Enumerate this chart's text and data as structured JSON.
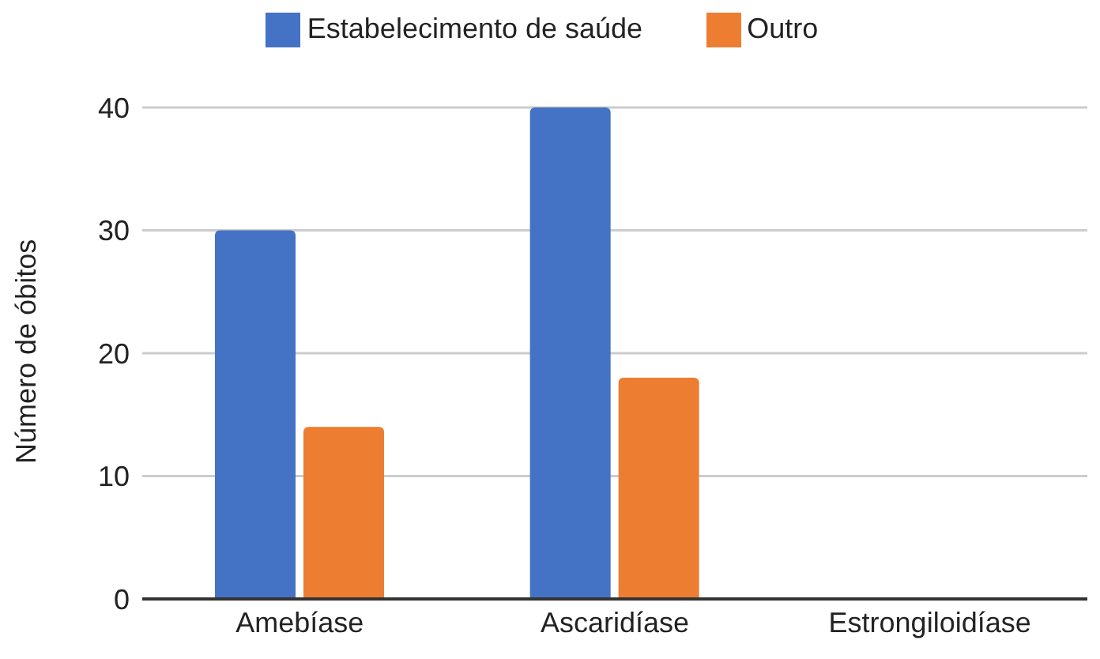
{
  "chart_data": {
    "type": "bar",
    "ylabel": "Número de óbitos",
    "categories": [
      "Amebíase",
      "Ascaridíase",
      "Estrongiloidíase"
    ],
    "series": [
      {
        "name": "Estabelecimento de saúde",
        "color": "#4472c4",
        "values": [
          30,
          40,
          0
        ]
      },
      {
        "name": "Outro",
        "color": "#ed7d31",
        "values": [
          14,
          18,
          0
        ]
      }
    ],
    "ylim": [
      0,
      40
    ],
    "yticks": [
      0,
      10,
      20,
      30,
      40
    ],
    "grid": "y",
    "legend": "top"
  }
}
